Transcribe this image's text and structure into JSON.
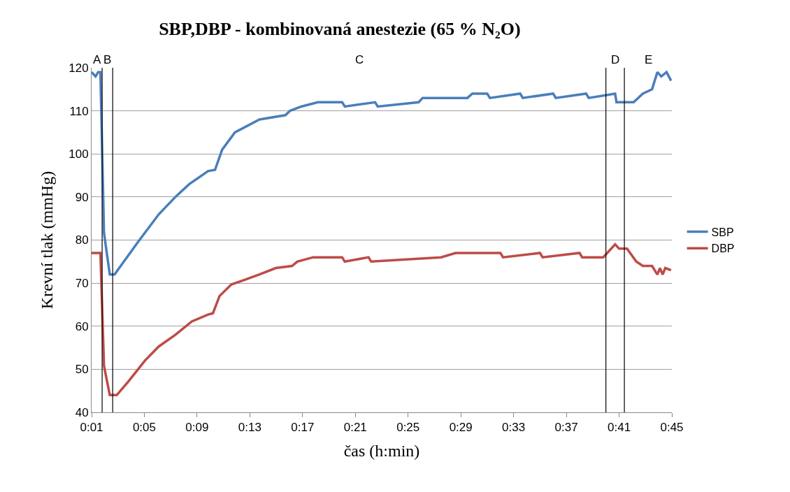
{
  "chart_data": {
    "type": "line",
    "title": "SBP,DBP - kombinovaná anestezie (65 % N₂O)",
    "xlabel": "čas (h:min)",
    "ylabel": "Krevní tlak (mmHg)",
    "series": [
      {
        "name": "SBP",
        "color": "#4a7ebb",
        "x": [
          1.0,
          1.3,
          1.5,
          1.67,
          1.94,
          2.38,
          2.74,
          4.51,
          6.1,
          7.35,
          8.41,
          9.83,
          10.36,
          10.9,
          11.87,
          13.73,
          15.7,
          16.04,
          16.9,
          18.16,
          20.0,
          20.2,
          22.5,
          22.7,
          25.8,
          26.1,
          29.5,
          29.87,
          31.0,
          31.2,
          33.5,
          33.7,
          36.0,
          36.2,
          38.5,
          38.7,
          40.7,
          40.8,
          42.1,
          42.8,
          43.5,
          43.9,
          44.2,
          44.6,
          44.94
        ],
        "values": [
          119,
          118,
          119,
          119,
          81.7,
          72,
          72,
          79.5,
          86,
          90,
          93,
          96,
          96.3,
          101,
          105,
          108,
          109,
          110,
          111,
          112,
          112,
          111,
          112,
          111,
          112,
          113,
          113,
          114,
          114,
          113,
          114,
          113,
          114,
          113,
          114,
          113,
          114,
          112,
          112,
          114,
          115,
          119,
          118,
          119,
          117
        ]
      },
      {
        "name": "DBP",
        "color": "#be4b48",
        "x": [
          1.0,
          1.67,
          1.94,
          2.38,
          2.91,
          3.8,
          5.04,
          6.1,
          7.35,
          8.6,
          9.83,
          10.2,
          10.7,
          11.6,
          12.65,
          13.7,
          14.97,
          16.2,
          16.6,
          17.8,
          20.0,
          20.2,
          22.0,
          22.2,
          27.5,
          28.6,
          32.0,
          32.2,
          35.0,
          35.2,
          38.0,
          38.2,
          39.8,
          40.7,
          41.0,
          41.6,
          42.3,
          42.8,
          43.5,
          43.9,
          44.1,
          44.3,
          44.5,
          44.94
        ],
        "values": [
          77,
          77,
          50.8,
          44,
          44,
          47.2,
          52,
          55.3,
          58,
          61.1,
          62.7,
          63,
          67,
          69.7,
          70.8,
          72,
          73.5,
          74,
          75,
          76,
          76,
          75,
          76,
          75,
          76,
          77,
          77,
          76,
          77,
          76,
          77,
          76,
          76,
          79,
          78,
          78,
          75,
          74,
          74,
          72,
          73.5,
          72,
          73.5,
          73
        ]
      }
    ],
    "xlim": [
      1,
      45
    ],
    "xticks": [
      {
        "value": 1,
        "label": "0:01"
      },
      {
        "value": 5,
        "label": "0:05"
      },
      {
        "value": 9,
        "label": "0:09"
      },
      {
        "value": 13,
        "label": "0:13"
      },
      {
        "value": 17,
        "label": "0:17"
      },
      {
        "value": 21,
        "label": "0:21"
      },
      {
        "value": 25,
        "label": "0:25"
      },
      {
        "value": 29,
        "label": "0:29"
      },
      {
        "value": 33,
        "label": "0:33"
      },
      {
        "value": 37,
        "label": "0:37"
      },
      {
        "value": 41,
        "label": "0:41"
      },
      {
        "value": 45,
        "label": "0:45"
      }
    ],
    "ylim": [
      40,
      120
    ],
    "yticks": [
      40,
      50,
      60,
      70,
      80,
      90,
      100,
      110,
      120
    ],
    "ref_lines": [
      {
        "axis": "x",
        "value": 1.8,
        "color": "#000000"
      },
      {
        "axis": "x",
        "value": 2.6,
        "color": "#000000"
      },
      {
        "axis": "x",
        "value": 40.0,
        "color": "#000000"
      },
      {
        "axis": "x",
        "value": 41.4,
        "color": "#000000"
      }
    ],
    "annotations": [
      "A",
      "B",
      "C",
      "D",
      "E"
    ],
    "grid": "y",
    "legend": "right",
    "marker": "none",
    "line_style": "solid"
  }
}
